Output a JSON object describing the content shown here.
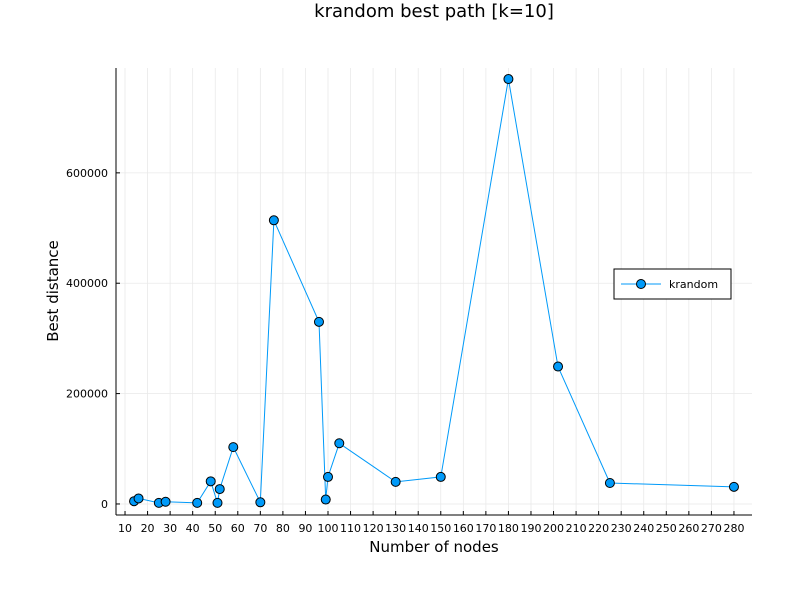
{
  "chart_data": {
    "type": "line",
    "title": "krandom best path [k=10]",
    "xlabel": "Number of nodes",
    "ylabel": "Best distance",
    "xlim": [
      6,
      288
    ],
    "ylim": [
      -20000,
      790000
    ],
    "x_ticks": [
      10,
      20,
      30,
      40,
      50,
      60,
      70,
      80,
      90,
      100,
      110,
      120,
      130,
      140,
      150,
      160,
      170,
      180,
      190,
      200,
      210,
      220,
      230,
      240,
      250,
      260,
      270,
      280
    ],
    "y_ticks": [
      0,
      200000,
      400000,
      600000
    ],
    "grid": true,
    "legend_position": "right",
    "series": [
      {
        "name": "krandom",
        "color": "#009AF9",
        "marker": "circle",
        "x": [
          14,
          16,
          25,
          28,
          42,
          48,
          51,
          52,
          58,
          70,
          76,
          96,
          99,
          100,
          105,
          130,
          150,
          180,
          202,
          225,
          280
        ],
        "y": [
          5000,
          10000,
          2000,
          4000,
          2000,
          41000,
          2000,
          27000,
          103000,
          3000,
          514000,
          330000,
          8000,
          49000,
          110000,
          40000,
          49000,
          770000,
          249000,
          38000,
          31000
        ]
      }
    ]
  }
}
